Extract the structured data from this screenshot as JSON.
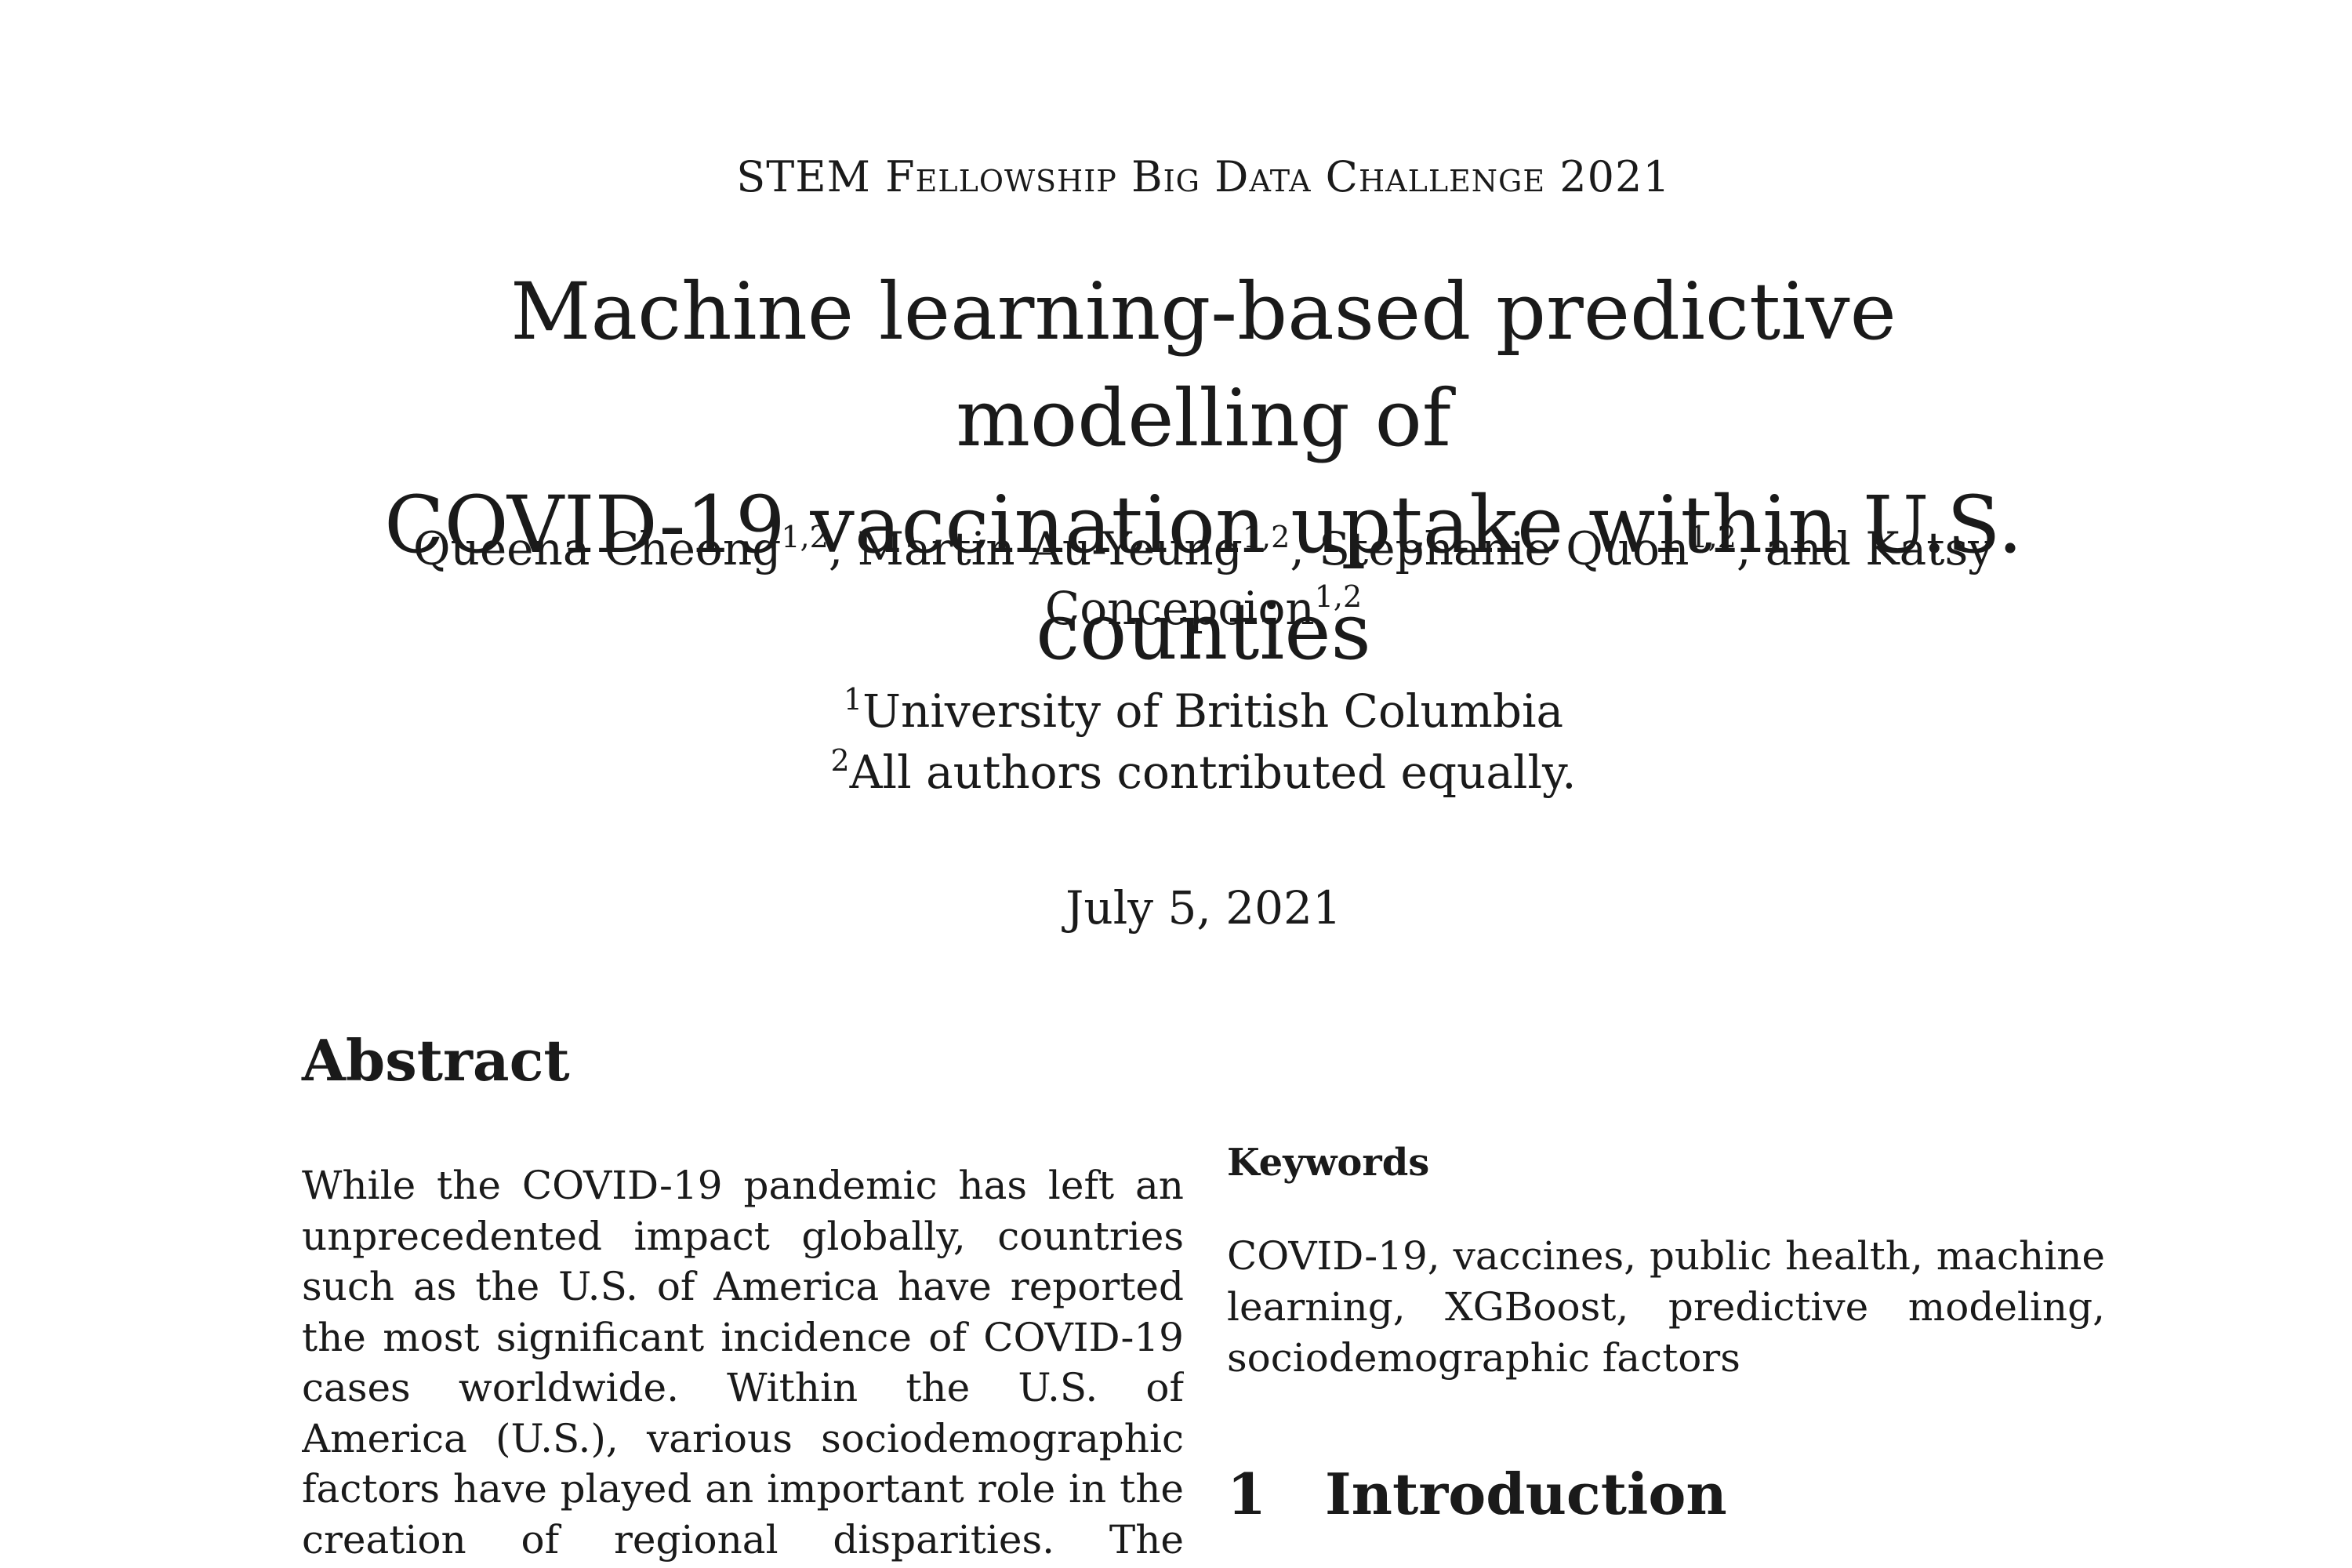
{
  "venue": "STEM Fellowship Big Data Challenge 2021",
  "title": {
    "line1": "Machine learning-based predictive modelling of",
    "line2": "COVID-19 vaccination uptake within U.S. counties"
  },
  "authors": [
    {
      "name": "Queena Cheong",
      "affil": "1,2",
      "sep": ", "
    },
    {
      "name": "Martin Au-Yeung",
      "affil": "1,2",
      "sep": ", "
    },
    {
      "name": "Stephanie Quon",
      "affil": "1,2",
      "sep": ", and "
    },
    {
      "name": "Katsy Concepcion",
      "affil": "1,2",
      "sep": ""
    }
  ],
  "affiliations": [
    {
      "mark": "1",
      "text": "University of British Columbia"
    },
    {
      "mark": "2",
      "text": "All authors contributed equally."
    }
  ],
  "date": "July 5, 2021",
  "abstract": {
    "heading": "Abstract",
    "text": "While the COVID-19 pandemic has left an unprecedented impact globally, countries such as the U.S. of America have reported the most significant incidence of COVID-19 cases worldwide. Within the U.S. of America (U.S.), various sociodemographic factors have played an important role in the creation of regional disparities. The presence of regional dispar-"
  },
  "keywords": {
    "heading": "Keywords",
    "text": "COVID-19, vaccines, public health, machine learning, XGBoost, predictive modeling, sociodemographic factors"
  },
  "introduction": {
    "number": "1",
    "heading": "Introduction"
  }
}
